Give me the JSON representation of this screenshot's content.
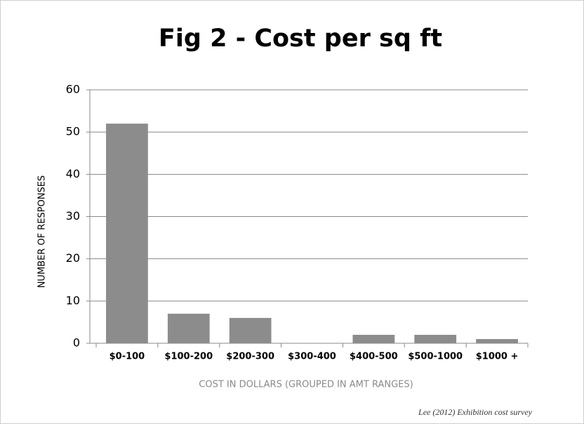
{
  "chart_data": {
    "type": "bar",
    "title": "Fig 2 - Cost per sq ft",
    "x_label": "COST IN DOLLARS (GROUPED IN AMT RANGES)",
    "y_label": "NUMBER OF RESPONSES",
    "source": "Lee (2012) Exhibition cost survey",
    "categories": [
      "$0-100",
      "$100-200",
      "$200-300",
      "$300-400",
      "$400-500",
      "$500-1000",
      "$1000 +"
    ],
    "values": [
      52,
      7,
      6,
      0,
      2,
      2,
      1
    ],
    "color": "#8c8c8c",
    "ylim": [
      0,
      60
    ],
    "yticks": [
      0,
      10,
      20,
      30,
      40,
      50,
      60
    ],
    "grid": true
  }
}
